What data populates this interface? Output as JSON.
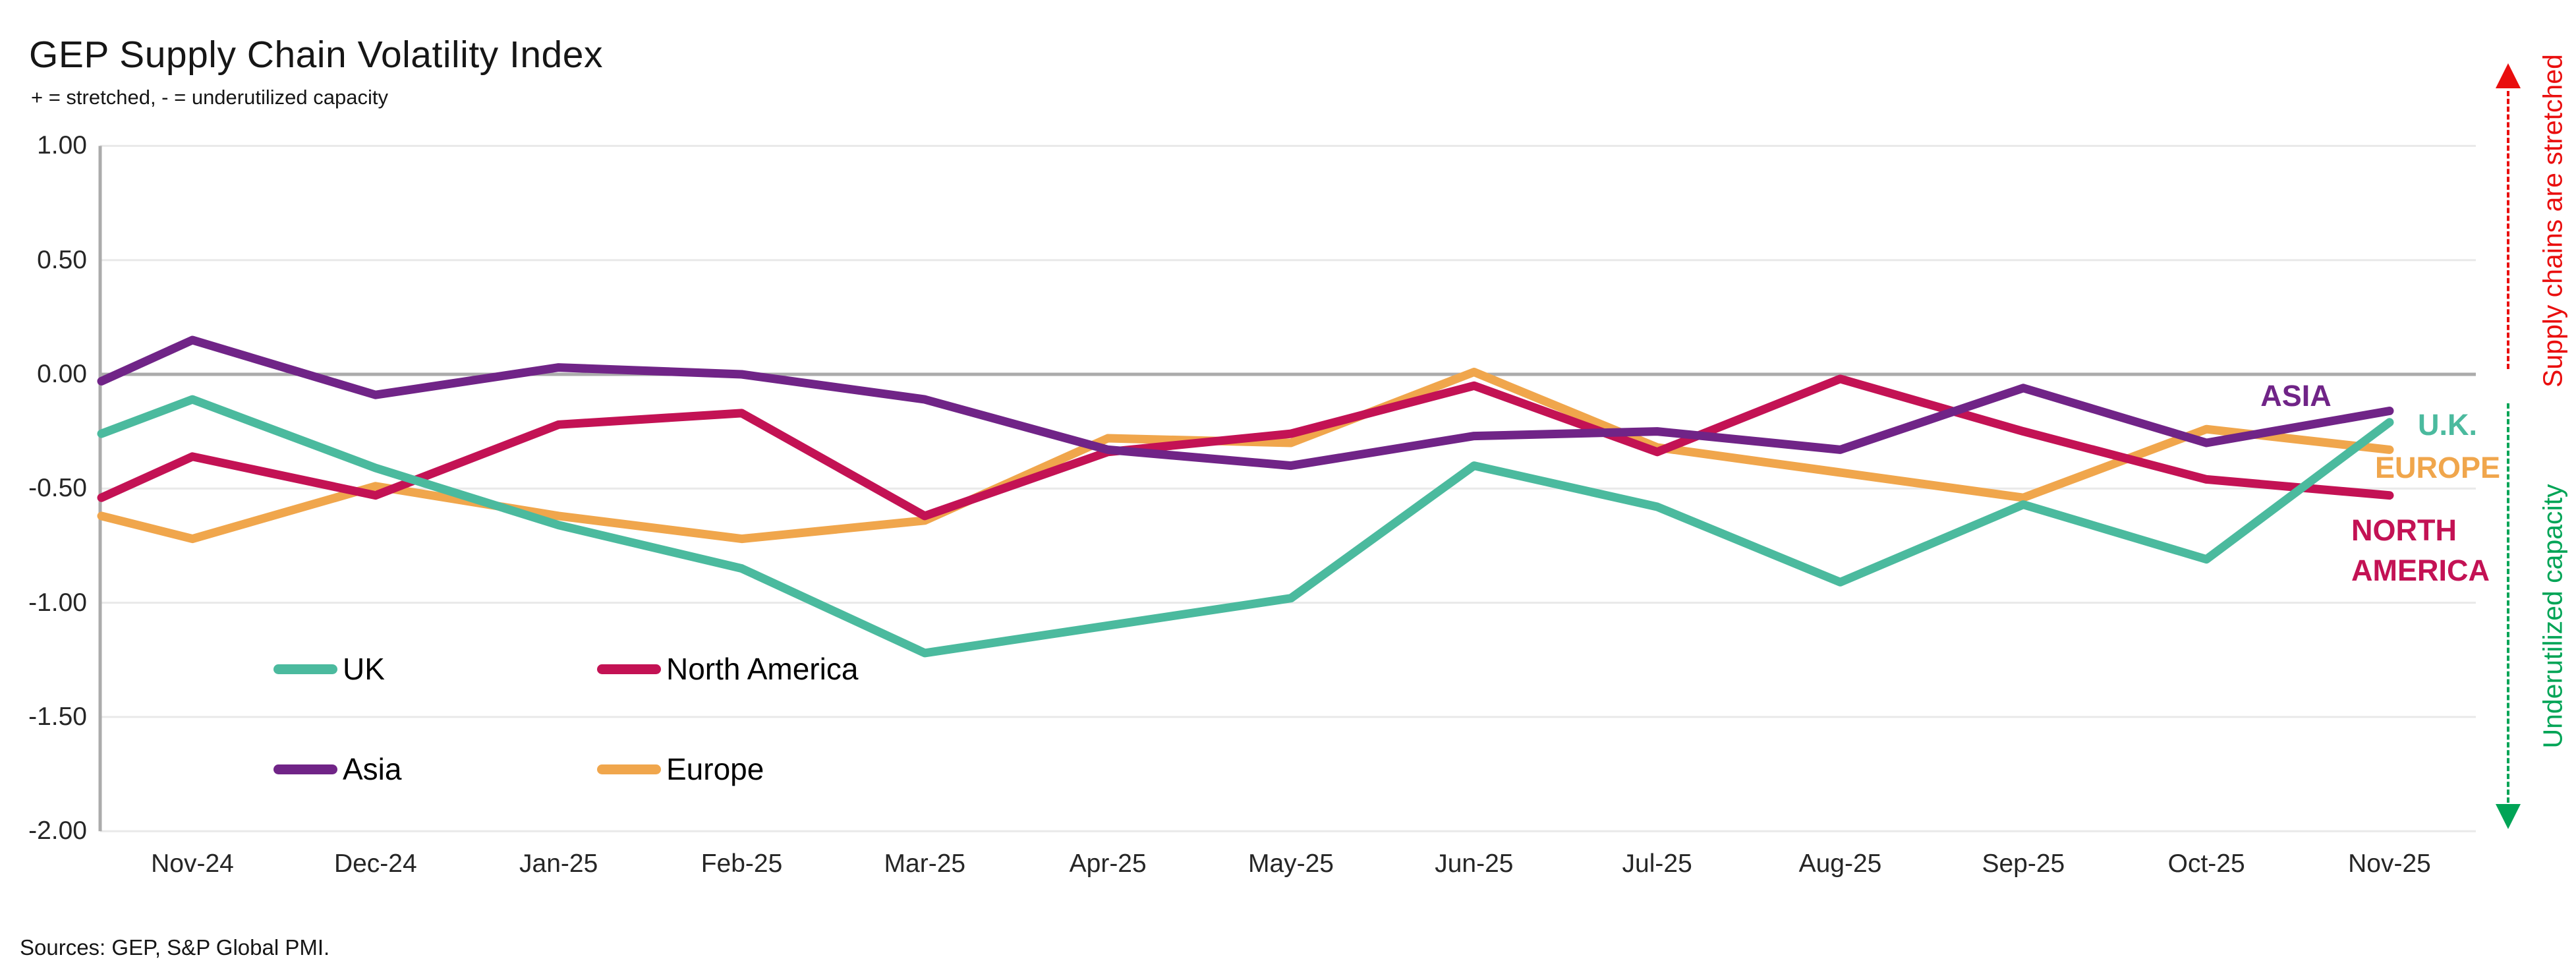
{
  "header": {
    "title": "GEP Supply Chain Volatility Index",
    "subtitle": "+ = stretched, - = underutilized capacity"
  },
  "footer": {
    "source_note": "Sources: GEP, S&P Global PMI."
  },
  "colors": {
    "uk": "#4BBA9E",
    "north_america": "#C31254",
    "asia": "#702487",
    "europe": "#F0A64C",
    "grid_light": "#E9E9E9",
    "axis_gray": "#ABABAB",
    "stretched_red": "#E90E0E",
    "underutilized_green": "#00A456"
  },
  "legend": [
    {
      "label": "UK",
      "color": "#4BBA9E"
    },
    {
      "label": "North America",
      "color": "#C31254"
    },
    {
      "label": "Asia",
      "color": "#702487"
    },
    {
      "label": "Europe",
      "color": "#F0A64C"
    }
  ],
  "end_labels": {
    "asia": {
      "text": "ASIA",
      "color": "#702487"
    },
    "uk": {
      "text": "U.K.",
      "color": "#4BBA9E"
    },
    "europe": {
      "text": "EUROPE",
      "color": "#F0A64C"
    },
    "north_america": {
      "lines": [
        "NORTH",
        "AMERICA"
      ],
      "color": "#C31254"
    }
  },
  "annotations": {
    "stretched": {
      "label": "Supply chains are stretched",
      "color": "#E90E0E",
      "icon": "up-arrow-icon"
    },
    "underutilized": {
      "label": "Underutilized capacity",
      "color": "#00A456",
      "icon": "down-arrow-icon"
    }
  },
  "y_axis": {
    "ticks": [
      {
        "label": "1.00",
        "value": 1.0
      },
      {
        "label": "0.50",
        "value": 0.5
      },
      {
        "label": "0.00",
        "value": 0.0
      },
      {
        "label": "-0.50",
        "value": -0.5
      },
      {
        "label": "-1.00",
        "value": -1.0
      },
      {
        "label": "-1.50",
        "value": -1.5
      },
      {
        "label": "-2.00",
        "value": -2.0
      }
    ]
  },
  "chart_data": {
    "type": "line",
    "title": "GEP Supply Chain Volatility Index",
    "xlabel": "",
    "ylabel": "",
    "ylim": [
      -2.0,
      1.0
    ],
    "ytick_step": 0.5,
    "grid": "horizontal",
    "legend_position": "inside-bottom-left",
    "x": [
      "Nov-24",
      "Dec-24",
      "Jan-25",
      "Feb-25",
      "Mar-25",
      "Apr-25",
      "May-25",
      "Jun-25",
      "Jul-25",
      "Aug-25",
      "Sep-25",
      "Oct-25",
      "Nov-25"
    ],
    "note": "lead_in is the value where each line meets the left axis (clipped prior month point)",
    "series": [
      {
        "name": "UK",
        "color": "#4BBA9E",
        "lead_in": -0.26,
        "values": [
          -0.11,
          -0.41,
          -0.66,
          -0.85,
          -1.22,
          -1.1,
          -0.98,
          -0.4,
          -0.58,
          -0.91,
          -0.57,
          -0.81,
          -0.21
        ]
      },
      {
        "name": "North America",
        "color": "#C31254",
        "lead_in": -0.54,
        "values": [
          -0.36,
          -0.53,
          -0.22,
          -0.17,
          -0.62,
          -0.34,
          -0.26,
          -0.05,
          -0.34,
          -0.02,
          -0.25,
          -0.46,
          -0.53
        ]
      },
      {
        "name": "Asia",
        "color": "#702487",
        "lead_in": -0.03,
        "values": [
          0.15,
          -0.09,
          0.03,
          0.0,
          -0.11,
          -0.33,
          -0.4,
          -0.27,
          -0.25,
          -0.33,
          -0.06,
          -0.3,
          -0.16
        ]
      },
      {
        "name": "Europe",
        "color": "#F0A64C",
        "lead_in": -0.62,
        "values": [
          -0.72,
          -0.49,
          -0.62,
          -0.72,
          -0.64,
          -0.28,
          -0.3,
          0.01,
          -0.32,
          -0.43,
          -0.54,
          -0.24,
          -0.33
        ]
      }
    ]
  }
}
